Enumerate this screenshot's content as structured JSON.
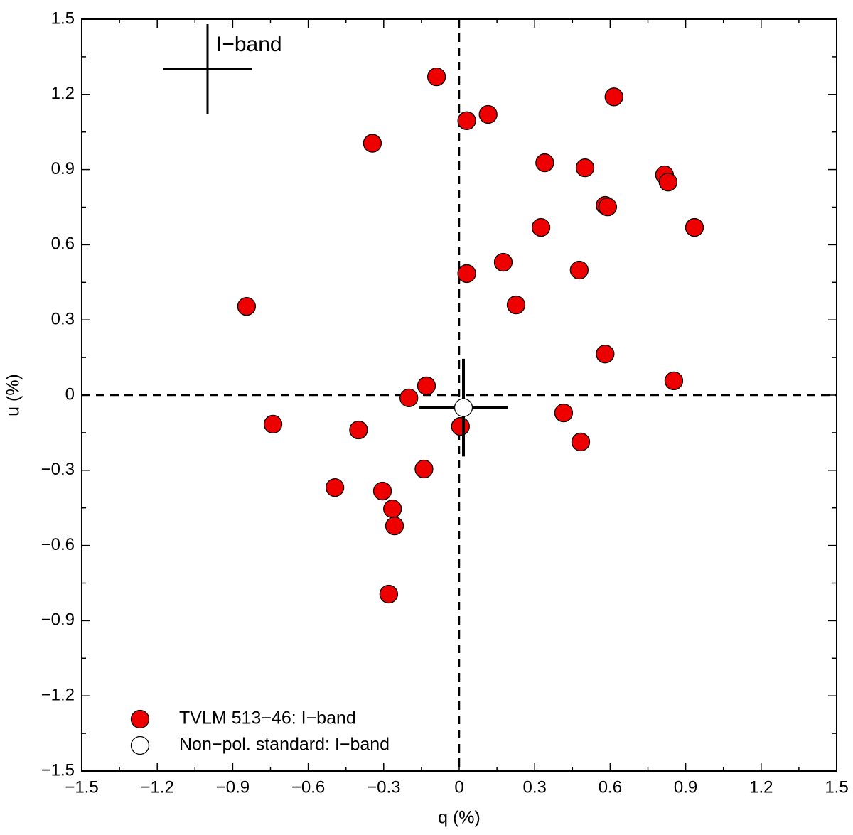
{
  "chart_data": {
    "type": "scatter",
    "xlabel": "q (%)",
    "ylabel": "u (%)",
    "xlim": [
      -1.5,
      1.5
    ],
    "ylim": [
      -1.5,
      1.5
    ],
    "xticks": [
      {
        "value": -1.5,
        "label": "−1.5"
      },
      {
        "value": -1.2,
        "label": "−1.2"
      },
      {
        "value": -0.9,
        "label": "−0.9"
      },
      {
        "value": -0.6,
        "label": "−0.6"
      },
      {
        "value": -0.3,
        "label": "−0.3"
      },
      0,
      0.3,
      0.6,
      0.9,
      1.2,
      1.5
    ],
    "yticks": [
      {
        "value": -1.5,
        "label": "−1.5"
      },
      {
        "value": -1.2,
        "label": "−1.2"
      },
      {
        "value": -0.9,
        "label": "−0.9"
      },
      {
        "value": -0.6,
        "label": "−0.6"
      },
      {
        "value": -0.3,
        "label": "−0.3"
      },
      0,
      0.3,
      0.6,
      0.9,
      1.2,
      1.5
    ],
    "legend": "lower left",
    "series": [
      {
        "name": "TVLM 513−46: I−band",
        "color": "#ee0000",
        "x": [
          -0.09,
          0.03,
          0.115,
          -0.345,
          0.615,
          0.34,
          0.5,
          0.816,
          0.83,
          0.58,
          0.59,
          0.325,
          0.935,
          0.03,
          0.175,
          0.477,
          0.226,
          -0.845,
          0.58,
          0.853,
          -0.13,
          -0.2,
          -0.74,
          -0.4,
          0.005,
          0.415,
          0.483,
          -0.14,
          -0.494,
          -0.305,
          -0.265,
          -0.257,
          -0.28
        ],
        "values": [
          1.27,
          1.095,
          1.12,
          1.005,
          1.19,
          0.927,
          0.907,
          0.879,
          0.85,
          0.757,
          0.751,
          0.669,
          0.669,
          0.485,
          0.53,
          0.499,
          0.36,
          0.354,
          0.164,
          0.057,
          0.037,
          -0.011,
          -0.116,
          -0.139,
          -0.125,
          -0.071,
          -0.187,
          -0.295,
          -0.369,
          -0.383,
          -0.454,
          -0.522,
          -0.794
        ]
      },
      {
        "name": "Non−pol. standard: I−band",
        "color": "#ffffff",
        "x": [
          0.017
        ],
        "values": [
          -0.05
        ],
        "xerr": [
          0.175
        ],
        "yerr": [
          0.195
        ]
      }
    ],
    "annotation": {
      "text": "I−band",
      "x": -1.0,
      "y": 1.3,
      "xerr": 0.177,
      "yerr": 0.18
    }
  }
}
